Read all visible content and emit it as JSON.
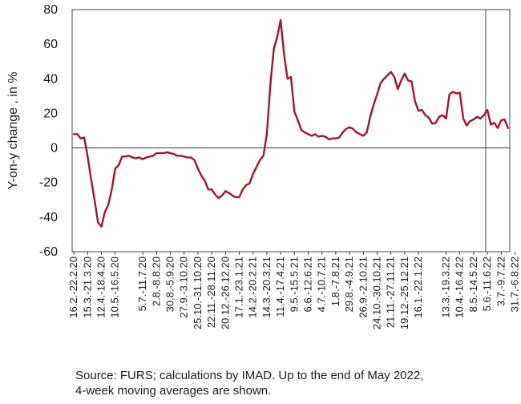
{
  "chart_data": {
    "type": "line",
    "ylabel": "Y-on-y change , in %",
    "xlabel": "",
    "ylim": [
      -60,
      80
    ],
    "yticks": [
      80,
      60,
      40,
      20,
      0,
      -20,
      -40,
      -60
    ],
    "grid": false,
    "line_color": "#a0152b",
    "marker_line_color": "#3a4a5a",
    "x_tick_labels": [
      "16.2.-22.2.20",
      "15.3.-21.3.20",
      "12.4.-18.4.20",
      "10.5.-16.5.20",
      "5.7.-11.7.20",
      "2.8.-8.8.20",
      "30.8.-5.9.20",
      "27.9.-3.10.20",
      "25.10.-31.10.20",
      "22.11.-28.11.20",
      "20.12.-26.12.20",
      "17.1.-23.1.21",
      "14.2.-20.2.21",
      "14.3.-20.3.21",
      "11.4.-17.4.21",
      "9.5.-15.5.21",
      "6.6.-12.6.21",
      "4.7.-10.7.21",
      "1.8.-7.8.21",
      "29.8.-4.9.21",
      "26.9.-2.10.21",
      "24.10.-30.10.21",
      "21.11.-27.11.21",
      "19.12.-25.12.21",
      "16.1.-22.1.22",
      "13.3.-19.3.22",
      "10.4.-16.4.22",
      "8.5.-14.5.22",
      "5.6.-11.6.22",
      "3.7.-9.7.22",
      "31.7.-6.8.22"
    ],
    "x_tick_index": [
      0,
      4,
      8,
      12,
      20,
      24,
      28,
      32,
      36,
      40,
      44,
      48,
      52,
      56,
      60,
      64,
      68,
      72,
      76,
      80,
      84,
      88,
      92,
      96,
      100,
      108,
      112,
      116,
      120,
      124,
      128
    ],
    "vertical_marker_index": 119,
    "series": [
      {
        "values": [
          8,
          8,
          5.5,
          6,
          -5,
          -18,
          -30,
          -43,
          -45.5,
          -37,
          -33,
          -24,
          -12,
          -10,
          -5,
          -5,
          -4.5,
          -5.5,
          -6,
          -5.5,
          -6.5,
          -5.5,
          -5,
          -4.5,
          -3,
          -3,
          -3,
          -2.5,
          -3,
          -3.5,
          -4.5,
          -4.5,
          -5,
          -5.5,
          -5.5,
          -7,
          -12,
          -16,
          -19,
          -24,
          -24,
          -27,
          -29,
          -27.5,
          -25,
          -26,
          -27.5,
          -28.5,
          -28.5,
          -24,
          -21.5,
          -20.5,
          -15,
          -11,
          -7,
          -4.5,
          8,
          36,
          57,
          64,
          74,
          54,
          40,
          41,
          21,
          16,
          10.5,
          9,
          8,
          7,
          8,
          6.5,
          7,
          6.5,
          5,
          5.5,
          5.5,
          6,
          9,
          11,
          12,
          11,
          9,
          8,
          7,
          9,
          18,
          25,
          31,
          37.5,
          40,
          42,
          44,
          41,
          34,
          39,
          43,
          39,
          38.5,
          27,
          21.5,
          22,
          19,
          17.5,
          14,
          14.5,
          18,
          19,
          17,
          31,
          32.5,
          31.5,
          32,
          17,
          13,
          15.5,
          16.5,
          18,
          17,
          19,
          22,
          13.5,
          14.5,
          11.5,
          16,
          16.5,
          11.5
        ]
      }
    ],
    "source_note": [
      "Source: FURS; calculations by IMAD. Up to the end of May 2022,",
      "4-week moving averages are shown."
    ]
  }
}
